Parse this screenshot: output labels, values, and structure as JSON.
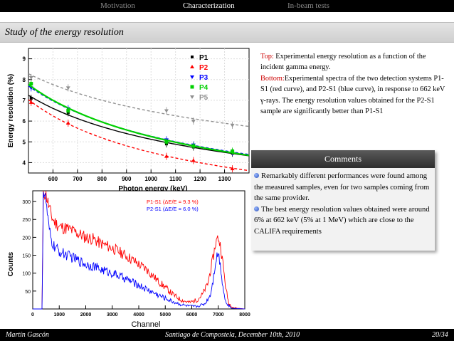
{
  "nav": {
    "items": [
      "Motivation",
      "Characterization",
      "In-beam tests"
    ],
    "active_index": 1
  },
  "slide_title": "Study of the energy resolution",
  "description": {
    "top_label": "Top:",
    "top_text": " Experimental energy resolution as a function of the incident gamma energy.",
    "bottom_label": "Bottom:",
    "bottom_text": "Experimental spectra of the two detection systems P1-S1 (red curve), and P2-S1 (blue curve), in response to 662 keV γ-rays. The energy resolution values obtained for the P2-S1 sample are significantly better than P1-S1"
  },
  "comments": {
    "title": "Comments",
    "items": [
      "Remarkably different performances were found among the measured samples, even for two samples coming from the same provider.",
      "The best energy resolution values obtained were around 6% at 662 keV  (5% at 1 MeV) which are close to the CALIFA requirements"
    ]
  },
  "footer": {
    "author": "Martín Gascón",
    "event": "Santiago de Compostela, December 10th, 2010",
    "page": "20/34"
  },
  "colors": {
    "P1": "#000000",
    "P2": "#ff0000",
    "P3": "#0000ff",
    "P4": "#00d000",
    "P5": "#909090"
  },
  "chart_data": [
    {
      "type": "scatter",
      "xlabel": "Photon energy (keV)",
      "ylabel": "Energy resolution (%)",
      "xlim": [
        500,
        1400
      ],
      "ylim": [
        3.5,
        9.5
      ],
      "xticks": [
        600,
        700,
        800,
        900,
        1000,
        1100,
        1200,
        1300
      ],
      "yticks": [
        4,
        5,
        6,
        7,
        8,
        9
      ],
      "legend_position": "top-right",
      "series": [
        {
          "name": "P1",
          "x": [
            511,
            662,
            1063,
            1173,
            1332
          ],
          "y": [
            7.1,
            6.4,
            4.9,
            4.75,
            4.45
          ]
        },
        {
          "name": "P2",
          "x": [
            511,
            662,
            1063,
            1173,
            1332
          ],
          "y": [
            6.9,
            5.9,
            4.3,
            4.1,
            3.7
          ]
        },
        {
          "name": "P3",
          "x": [
            511,
            662,
            1063,
            1173,
            1332
          ],
          "y": [
            7.6,
            6.6,
            5.1,
            4.85,
            4.5
          ]
        },
        {
          "name": "P4",
          "x": [
            511,
            662,
            1063,
            1173,
            1332
          ],
          "y": [
            7.8,
            6.5,
            5.0,
            4.8,
            4.55
          ]
        },
        {
          "name": "P5",
          "x": [
            511,
            662,
            1063,
            1173,
            1332
          ],
          "y": [
            8.1,
            7.6,
            6.5,
            6.0,
            5.8
          ]
        }
      ]
    },
    {
      "type": "line",
      "xlabel": "Channel",
      "ylabel": "Counts",
      "xlim": [
        0,
        8000
      ],
      "ylim": [
        0,
        330
      ],
      "xticks": [
        0,
        1000,
        2000,
        3000,
        4000,
        5000,
        6000,
        7000,
        8000
      ],
      "yticks": [
        50,
        100,
        150,
        200,
        250,
        300
      ],
      "legend_position": "top-right",
      "series": [
        {
          "name": "P1-S1  (ΔE/E = 9.3 %)",
          "x": [
            0,
            350,
            400,
            500,
            600,
            700,
            800,
            1000,
            1300,
            1600,
            2000,
            2300,
            2500,
            3000,
            3500,
            3900,
            4300,
            4700,
            5000,
            5300,
            5600,
            5900,
            6200,
            6400,
            6600,
            6800,
            6900,
            7000,
            7100,
            7200,
            7300,
            7400,
            7600,
            8000
          ],
          "y": [
            0,
            0,
            330,
            320,
            290,
            260,
            245,
            230,
            225,
            215,
            200,
            195,
            185,
            170,
            150,
            130,
            110,
            80,
            60,
            40,
            25,
            18,
            25,
            40,
            70,
            140,
            185,
            200,
            170,
            110,
            50,
            15,
            3,
            0
          ]
        },
        {
          "name": "P2-S1  (ΔE/E = 6.0 %)",
          "x": [
            0,
            350,
            400,
            500,
            600,
            700,
            800,
            1000,
            1300,
            1600,
            2000,
            2300,
            2500,
            3000,
            3500,
            3900,
            4300,
            4700,
            5000,
            5300,
            5600,
            5900,
            6200,
            6500,
            6700,
            6800,
            6900,
            7000,
            7100,
            7200,
            7300,
            7500,
            8000
          ],
          "y": [
            0,
            0,
            330,
            300,
            230,
            190,
            175,
            160,
            150,
            140,
            125,
            120,
            112,
            100,
            85,
            70,
            55,
            40,
            30,
            20,
            12,
            8,
            7,
            15,
            40,
            80,
            135,
            160,
            110,
            50,
            15,
            2,
            0
          ]
        }
      ]
    }
  ]
}
